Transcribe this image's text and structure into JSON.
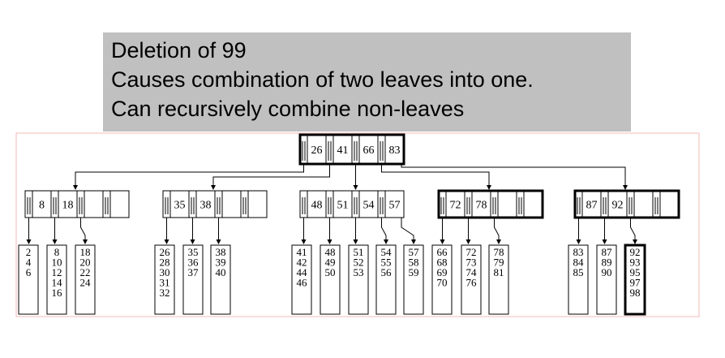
{
  "caption": {
    "line1": "Deletion of 99",
    "line2": "Causes combination of two leaves into one.",
    "line3": "Can recursively combine non-leaves"
  },
  "colors": {
    "caption_bg": "#c0c0c0",
    "frame": "#f4b8b8",
    "line": "#000000"
  },
  "tree": {
    "root": {
      "keys": [
        "26",
        "41",
        "66",
        "83"
      ],
      "bold": true
    },
    "internal": [
      {
        "keys": [
          "8",
          "18"
        ],
        "bold": false
      },
      {
        "keys": [
          "35",
          "38"
        ],
        "bold": false
      },
      {
        "keys": [
          "48",
          "51",
          "54",
          "57"
        ],
        "bold": false
      },
      {
        "keys": [
          "72",
          "78"
        ],
        "bold": true
      },
      {
        "keys": [
          "87",
          "92"
        ],
        "bold": true
      }
    ],
    "leaves": [
      {
        "keys": [
          "2",
          "4",
          "6"
        ],
        "bold": false
      },
      {
        "keys": [
          "8",
          "10",
          "12",
          "14",
          "16"
        ],
        "bold": false
      },
      {
        "keys": [
          "18",
          "20",
          "22",
          "24"
        ],
        "bold": false
      },
      {
        "keys": [
          "26",
          "28",
          "30",
          "31",
          "32"
        ],
        "bold": false
      },
      {
        "keys": [
          "35",
          "36",
          "37"
        ],
        "bold": false
      },
      {
        "keys": [
          "38",
          "39",
          "40"
        ],
        "bold": false
      },
      {
        "keys": [
          "41",
          "42",
          "44",
          "46"
        ],
        "bold": false
      },
      {
        "keys": [
          "48",
          "49",
          "50"
        ],
        "bold": false
      },
      {
        "keys": [
          "51",
          "52",
          "53"
        ],
        "bold": false
      },
      {
        "keys": [
          "54",
          "55",
          "56"
        ],
        "bold": false
      },
      {
        "keys": [
          "57",
          "58",
          "59"
        ],
        "bold": false
      },
      {
        "keys": [
          "66",
          "68",
          "69",
          "70"
        ],
        "bold": false
      },
      {
        "keys": [
          "72",
          "73",
          "74",
          "76"
        ],
        "bold": false
      },
      {
        "keys": [
          "78",
          "79",
          "81"
        ],
        "bold": false
      },
      {
        "keys": [
          "83",
          "84",
          "85"
        ],
        "bold": false
      },
      {
        "keys": [
          "87",
          "89",
          "90"
        ],
        "bold": false
      },
      {
        "keys": [
          "92",
          "93",
          "95",
          "97",
          "98"
        ],
        "bold": true
      }
    ]
  }
}
